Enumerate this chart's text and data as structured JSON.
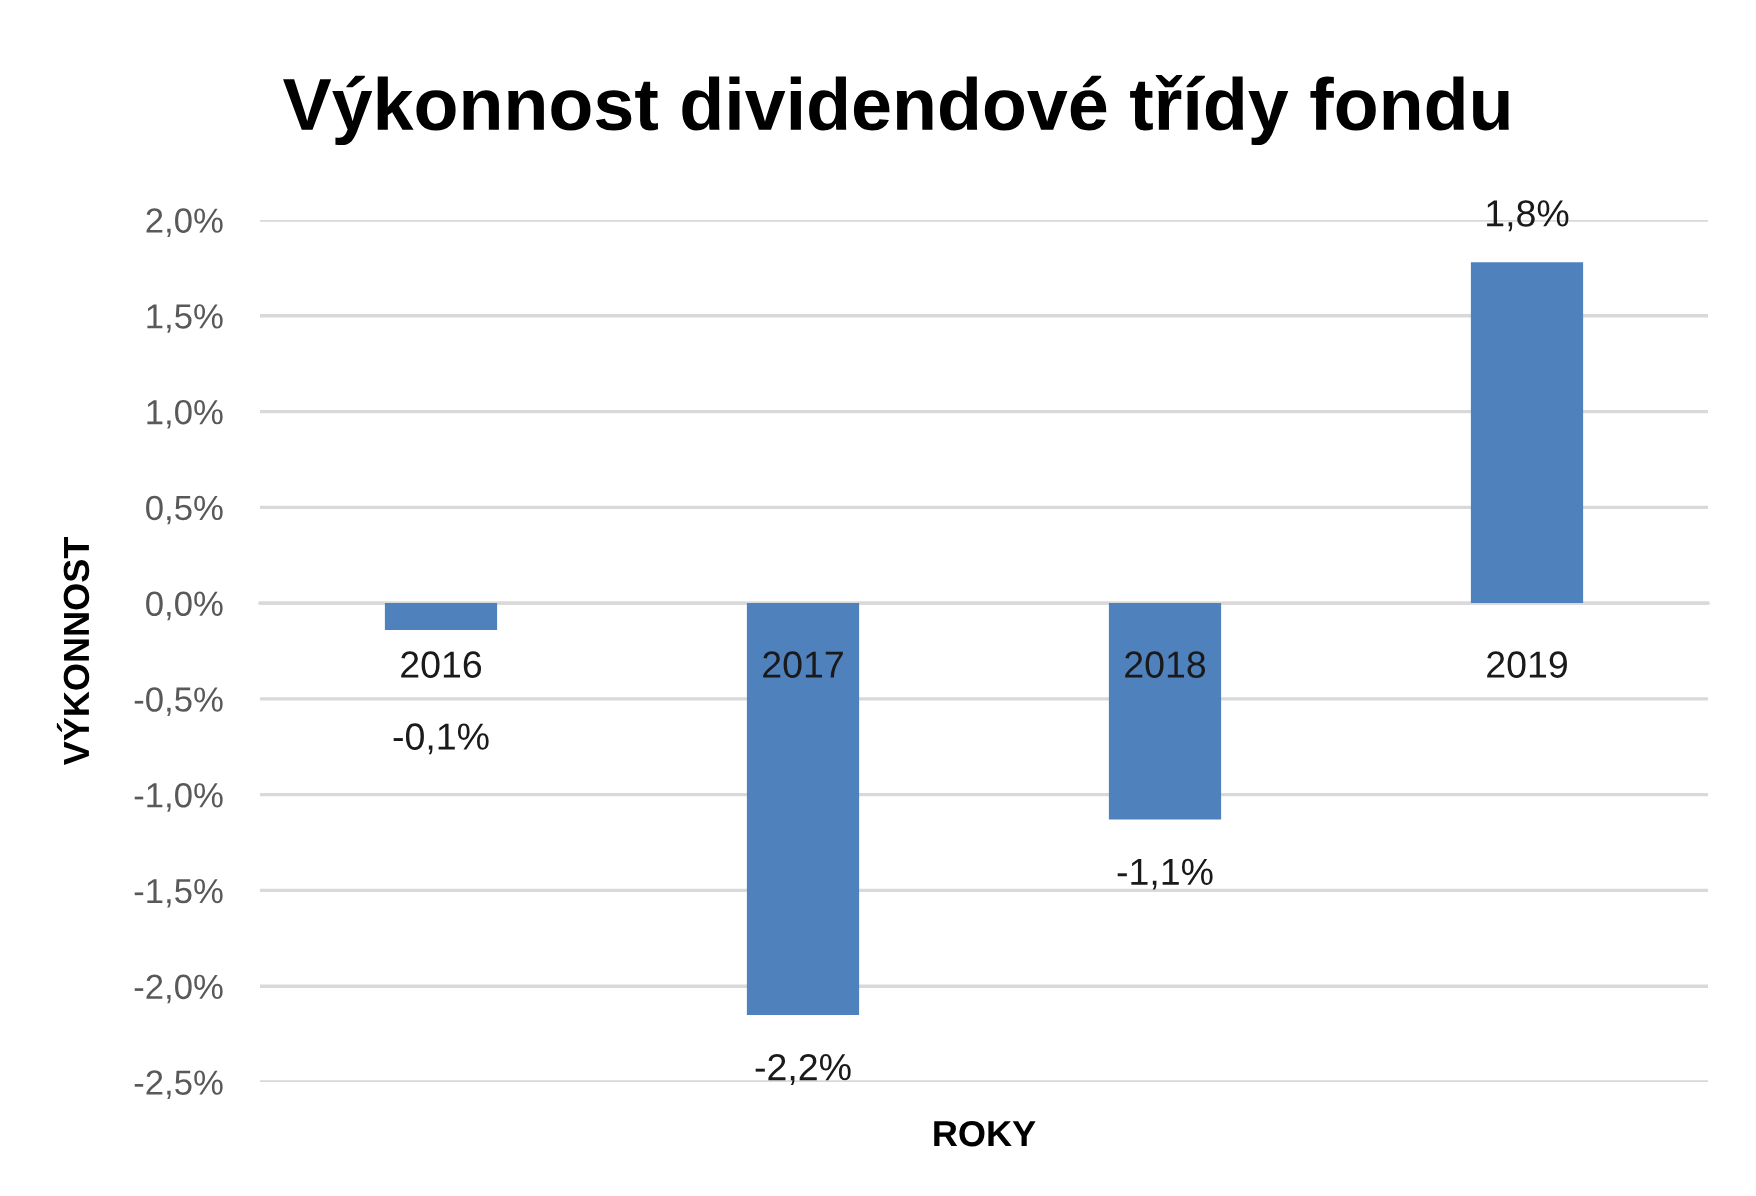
{
  "chart_data": {
    "type": "bar",
    "title": "Výkonnost dividendové třídy fondu",
    "xlabel": "ROKY",
    "ylabel": "VÝKONNOST",
    "categories": [
      "2016",
      "2017",
      "2018",
      "2019"
    ],
    "values": [
      -0.14,
      -2.15,
      -1.13,
      1.78
    ],
    "color": "#4f81bd",
    "value_labels": [
      "-0,1%",
      "-2,2%",
      "-1,1%",
      "1,8%"
    ],
    "ylim": [
      -2.5,
      2.0
    ],
    "yticks": [
      {
        "value": -2.5,
        "label": "-2,5%"
      },
      {
        "value": -2.0,
        "label": "-2,0%"
      },
      {
        "value": -1.5,
        "label": "-1,5%"
      },
      {
        "value": -1.0,
        "label": "-1,0%"
      },
      {
        "value": -0.5,
        "label": "-0,5%"
      },
      {
        "value": 0.0,
        "label": "0,0%"
      },
      {
        "value": 0.5,
        "label": "0,5%"
      },
      {
        "value": 1.0,
        "label": "1,0%"
      },
      {
        "value": 1.5,
        "label": "1,5%"
      },
      {
        "value": 2.0,
        "label": "2,0%"
      }
    ],
    "grid": "y"
  }
}
